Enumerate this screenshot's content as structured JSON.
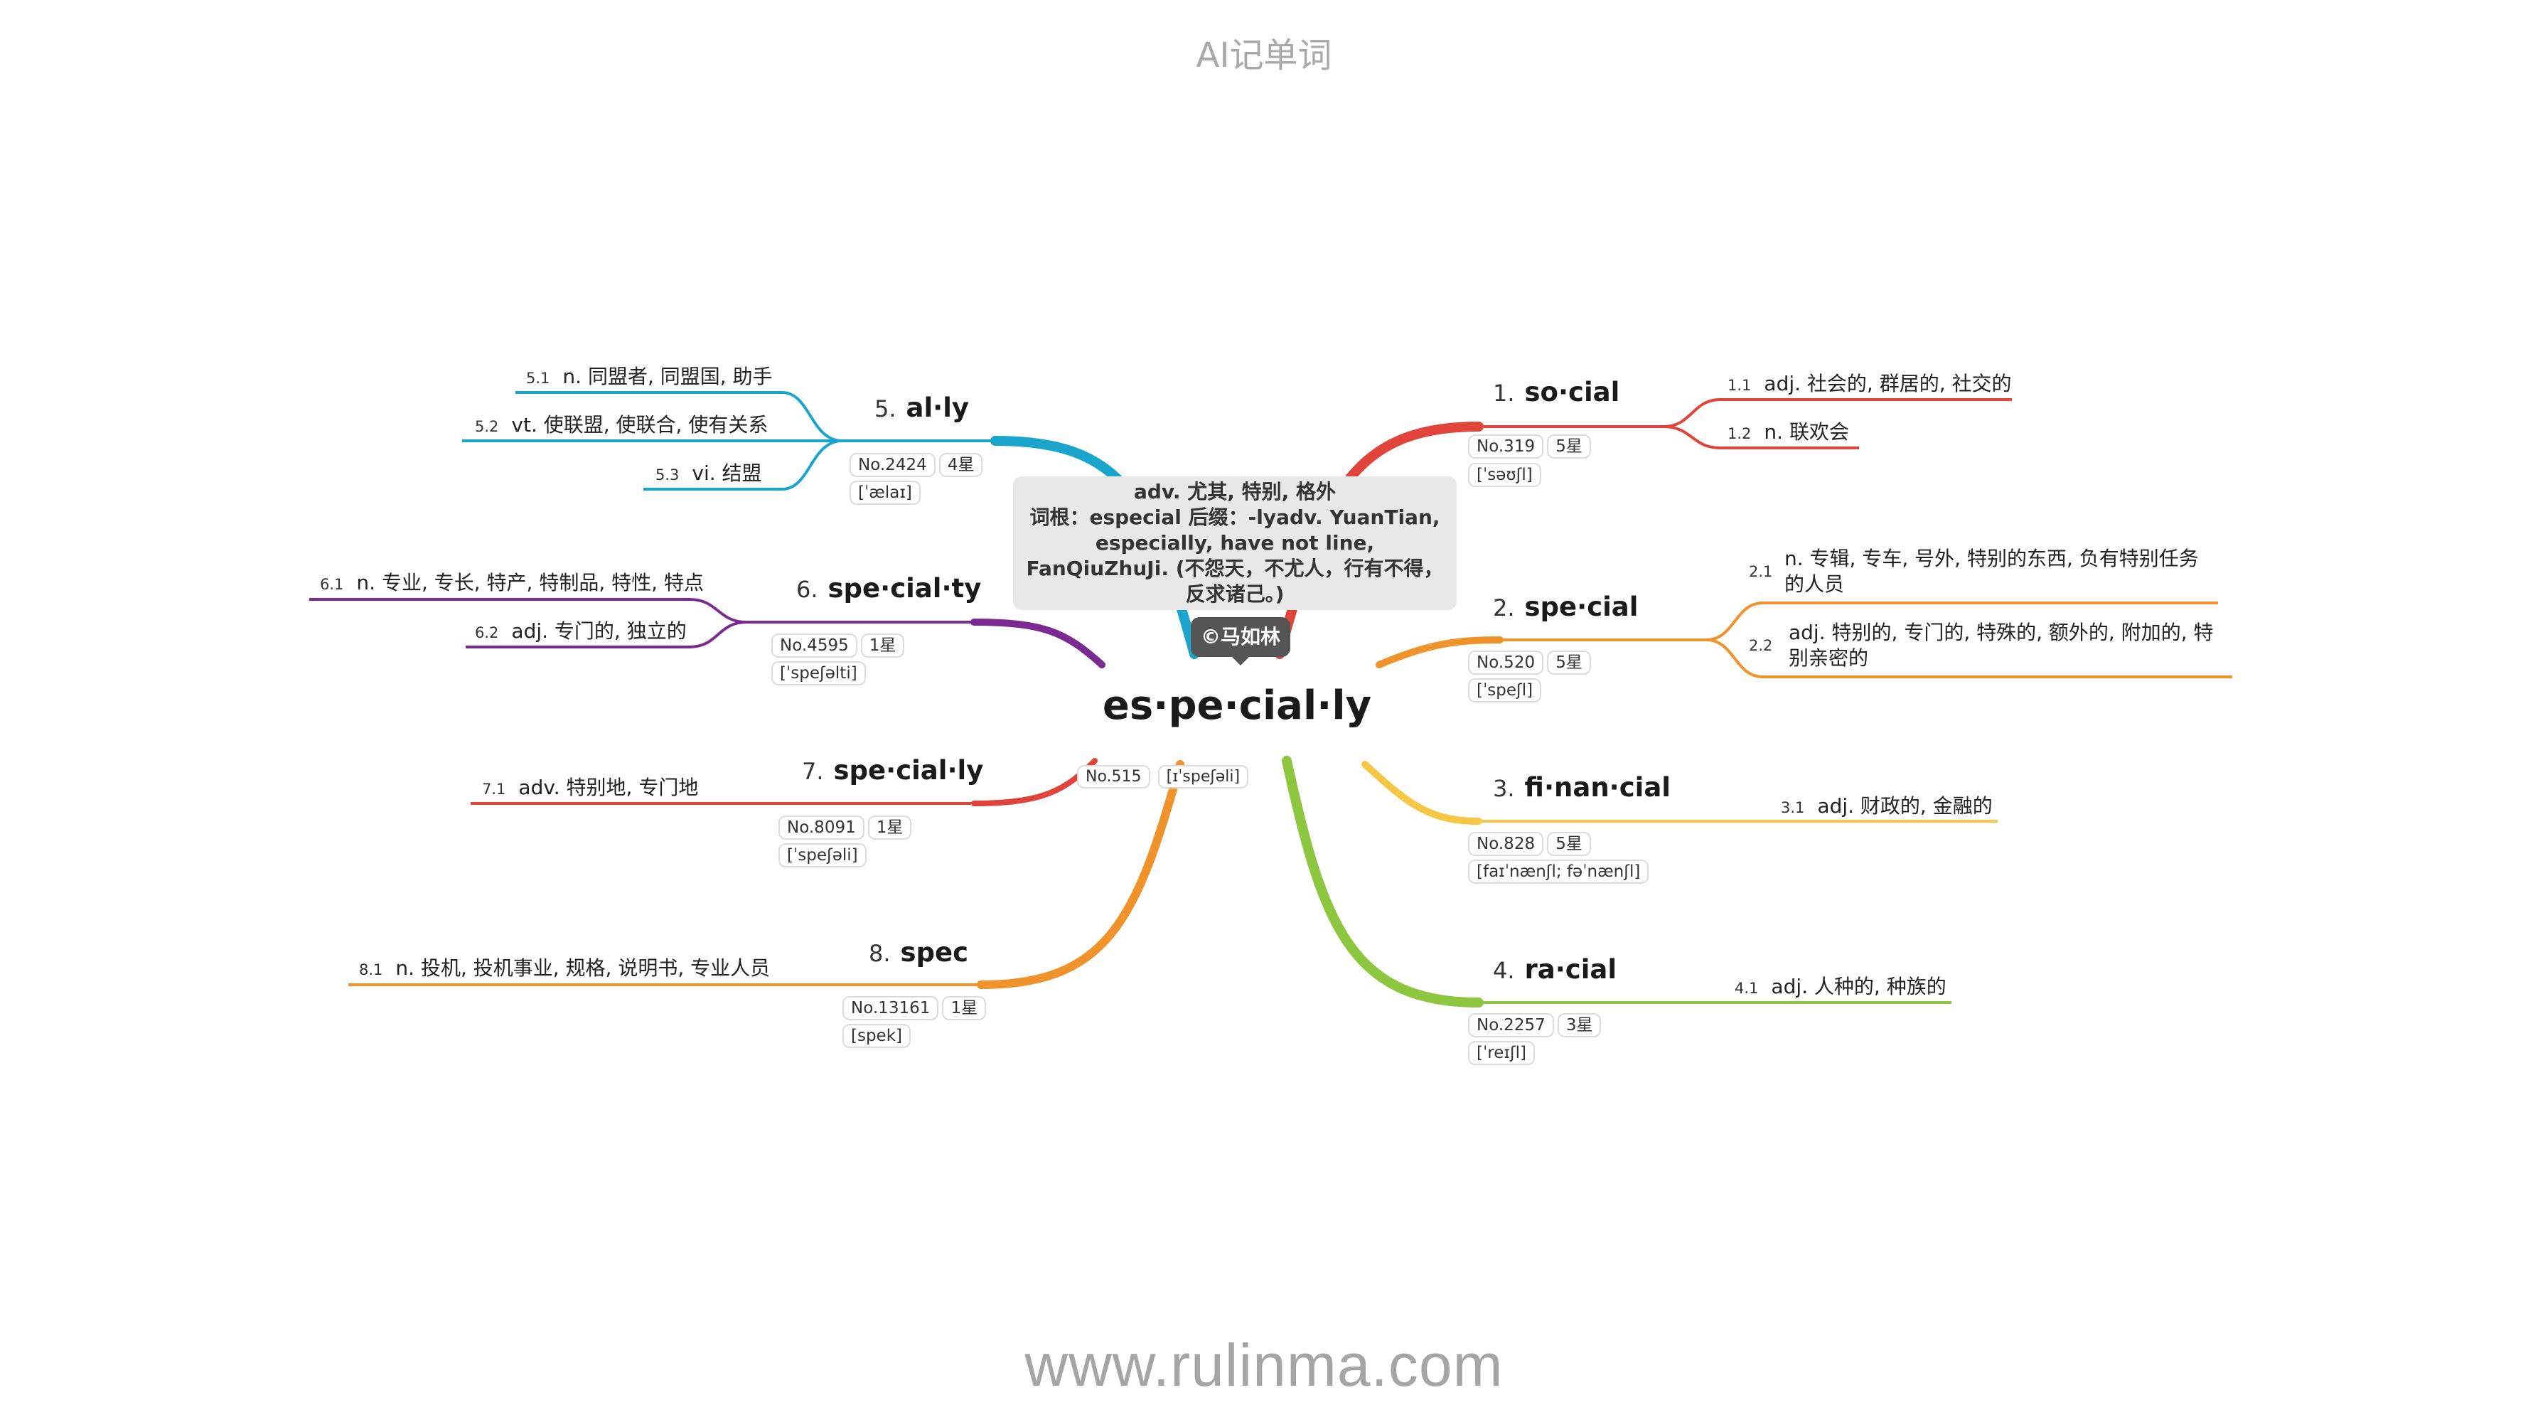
{
  "header": {
    "title": "AI记单词"
  },
  "footer": {
    "url": "www.rulinma.com"
  },
  "center": {
    "word": "es·pe·cial·ly",
    "rank": "No.515",
    "phonetic": "[ɪˈspeʃəli]",
    "note": "adv. 尤其, 特别, 格外\n词根：especial 后缀：-lyadv. YuanTian, especially, have not line, FanQiuZhuJi. (不怨天，不尤人，行有不得，反求诸己。)",
    "author": "©马如林"
  },
  "branches": [
    {
      "num": "1.",
      "word": "so·cial",
      "rank": "No.319",
      "stars": "5星",
      "phonetic": "[ˈsəʊʃl]",
      "color": "#e0443a",
      "leaves": [
        {
          "num": "1.1",
          "text": "adj. 社会的, 群居的, 社交的"
        },
        {
          "num": "1.2",
          "text": "n. 联欢会"
        }
      ]
    },
    {
      "num": "2.",
      "word": "spe·cial",
      "rank": "No.520",
      "stars": "5星",
      "phonetic": "[ˈspeʃl]",
      "color": "#f0932b",
      "leaves": [
        {
          "num": "2.1",
          "text": "n. 专辑, 专车, 号外, 特别的东西, 负有特别任务的人员"
        },
        {
          "num": "2.2",
          "text": "adj. 特别的, 专门的, 特殊的, 额外的, 附加的, 特别亲密的"
        }
      ]
    },
    {
      "num": "3.",
      "word": "fi·nan·cial",
      "rank": "No.828",
      "stars": "5星",
      "phonetic": "[faɪˈnænʃl; fəˈnænʃl]",
      "color": "#f6c744",
      "leaves": [
        {
          "num": "3.1",
          "text": "adj. 财政的, 金融的"
        }
      ]
    },
    {
      "num": "4.",
      "word": "ra·cial",
      "rank": "No.2257",
      "stars": "3星",
      "phonetic": "[ˈreɪʃl]",
      "color": "#8dc63f",
      "leaves": [
        {
          "num": "4.1",
          "text": "adj. 人种的, 种族的"
        }
      ]
    },
    {
      "num": "5.",
      "word": "al·ly",
      "rank": "No.2424",
      "stars": "4星",
      "phonetic": "[ˈælaɪ]",
      "color": "#1aa6cc",
      "leaves": [
        {
          "num": "5.1",
          "text": "n. 同盟者, 同盟国, 助手"
        },
        {
          "num": "5.2",
          "text": "vt. 使联盟, 使联合, 使有关系"
        },
        {
          "num": "5.3",
          "text": "vi. 结盟"
        }
      ]
    },
    {
      "num": "6.",
      "word": "spe·cial·ty",
      "rank": "No.4595",
      "stars": "1星",
      "phonetic": "[ˈspeʃəlti]",
      "color": "#7b2a91",
      "leaves": [
        {
          "num": "6.1",
          "text": "n. 专业, 专长, 特产, 特制品, 特性, 特点"
        },
        {
          "num": "6.2",
          "text": "adj. 专门的, 独立的"
        }
      ]
    },
    {
      "num": "7.",
      "word": "spe·cial·ly",
      "rank": "No.8091",
      "stars": "1星",
      "phonetic": "[ˈspeʃəli]",
      "color": "#e0443a",
      "leaves": [
        {
          "num": "7.1",
          "text": "adv. 特别地, 专门地"
        }
      ]
    },
    {
      "num": "8.",
      "word": "spec",
      "rank": "No.13161",
      "stars": "1星",
      "phonetic": "[spek]",
      "color": "#f0932b",
      "leaves": [
        {
          "num": "8.1",
          "text": "n. 投机, 投机事业, 规格, 说明书, 专业人员"
        }
      ]
    }
  ]
}
